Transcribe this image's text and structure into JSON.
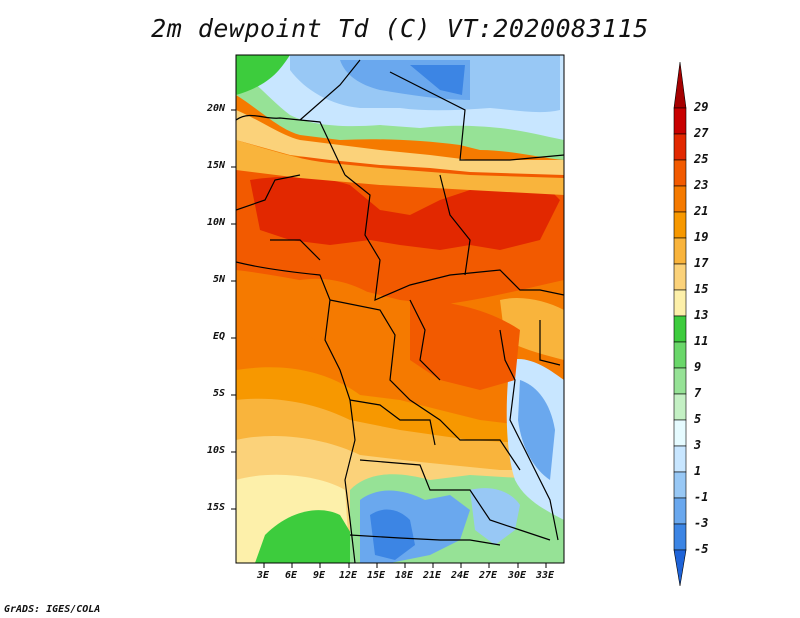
{
  "title": "2m dewpoint Td (C) VT:2020083115",
  "footer": "GrADS: IGES/COLA",
  "map": {
    "lat_ticks": [
      "20N",
      "15N",
      "10N",
      "5N",
      "EQ",
      "5S",
      "10S",
      "15S"
    ],
    "lon_ticks": [
      "3E",
      "6E",
      "9E",
      "12E",
      "15E",
      "18E",
      "21E",
      "24E",
      "27E",
      "30E",
      "33E"
    ]
  },
  "colorbar": {
    "labels": [
      "29",
      "27",
      "25",
      "23",
      "21",
      "19",
      "17",
      "15",
      "13",
      "11",
      "9",
      "7",
      "5",
      "3",
      "1",
      "-1",
      "-3",
      "-5"
    ],
    "colors": [
      "#a50000",
      "#c80000",
      "#e22800",
      "#f25a00",
      "#f57a00",
      "#f79800",
      "#f9b43c",
      "#fbd27a",
      "#fdf0aa",
      "#3dcc3d",
      "#6ad76a",
      "#96e296",
      "#c4f0c4",
      "#e6fbff",
      "#c8e6ff",
      "#98c8f5",
      "#6aa8ee",
      "#3c85e4",
      "#1e63d8"
    ]
  }
}
